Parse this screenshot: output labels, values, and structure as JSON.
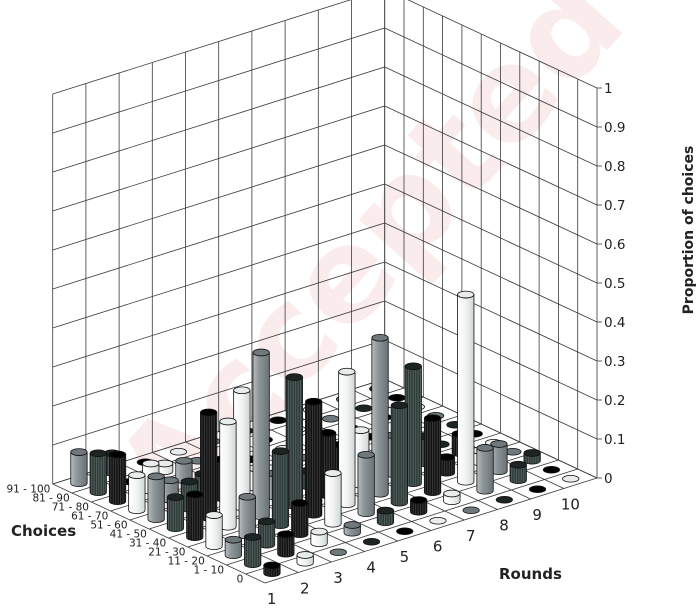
{
  "chart_data": {
    "type": "bar3d",
    "title": "",
    "xlabel": "Rounds",
    "ylabel": "Choices",
    "zlabel": "Proportion of choices",
    "rounds": [
      "1",
      "2",
      "3",
      "4",
      "5",
      "6",
      "7",
      "8",
      "9",
      "10"
    ],
    "choices": [
      "0",
      "1 - 10",
      "11 - 20",
      "21 - 30",
      "31 - 40",
      "41 - 50",
      "51 - 60",
      "61 - 70",
      "71 - 80",
      "81 - 90",
      "91 - 100"
    ],
    "zticks": [
      "0",
      "0.1",
      "0.2",
      "0.3",
      "0.4",
      "0.5",
      "0.6",
      "0.7",
      "0.8",
      "0.9",
      "1"
    ],
    "zlim": [
      0,
      1
    ],
    "grid": true,
    "values": [
      [
        0.02,
        0.07,
        0.04,
        0.08,
        0.11,
        0.08,
        0.11,
        0.09,
        0.12,
        0.1,
        0.08
      ],
      [
        0.02,
        0.05,
        0.06,
        0.1,
        0.27,
        0.27,
        0.07,
        0.05,
        0.07,
        0.0,
        0.05
      ],
      [
        0.0,
        0.03,
        0.08,
        0.19,
        0.42,
        0.3,
        0.1,
        0.04,
        0.05,
        0.02,
        0.0
      ],
      [
        0.0,
        0.02,
        0.13,
        0.29,
        0.33,
        0.06,
        0.05,
        0.0,
        0.0,
        0.0,
        0.0
      ],
      [
        0.0,
        0.03,
        0.15,
        0.34,
        0.16,
        0.04,
        0.0,
        0.0,
        0.0,
        0.0,
        0.0
      ],
      [
        0.0,
        0.03,
        0.25,
        0.4,
        0.14,
        0.08,
        0.0,
        0.0,
        0.0,
        0.0,
        0.0
      ],
      [
        0.0,
        0.02,
        0.19,
        0.3,
        0.1,
        0.0,
        0.0,
        0.0,
        0.0,
        0.0,
        0.0
      ],
      [
        0.0,
        0.11,
        0.48,
        0.04,
        0.07,
        0.0,
        0.0,
        0.0,
        0.0,
        0.0,
        0.0
      ],
      [
        0.0,
        0.04,
        0.07,
        0.03,
        0.05,
        0.0,
        0.0,
        0.0,
        0.0,
        0.0,
        0.0
      ],
      [
        0.0,
        0.0,
        0.02,
        0.0,
        0.0,
        0.0,
        0.0,
        0.0,
        0.0,
        0.0,
        0.0
      ]
    ],
    "bar_colors": [
      "#121212",
      "#2d3a38",
      "#8e979a",
      "#f2f4f4"
    ]
  },
  "watermark": "Accepted"
}
